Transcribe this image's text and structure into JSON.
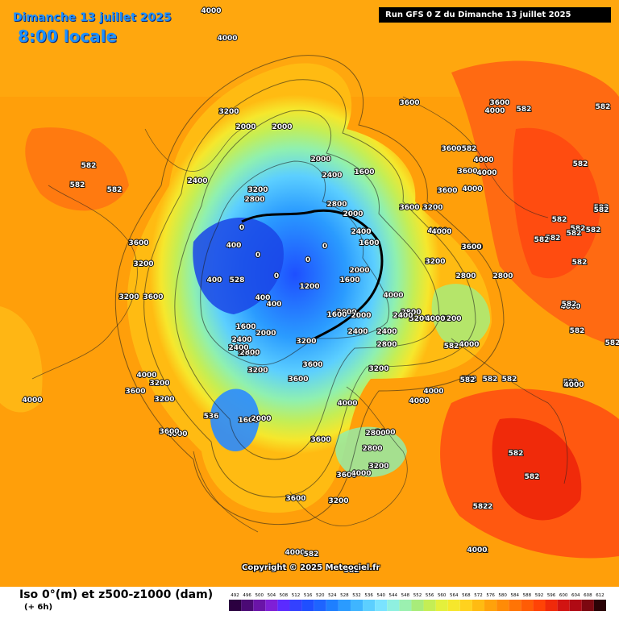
{
  "header": {
    "date": "Dimanche 13 juillet 2025",
    "time": "8:00 locale",
    "run": "Run GFS 0 Z du Dimanche 13 juillet 2025"
  },
  "copyright": "Copyright © 2025 Meteociel.fr",
  "legend": {
    "title": "Iso 0°(m) et z500-z1000 (dam)",
    "subtitle": "(+ 6h)",
    "ticks": [
      "492",
      "496",
      "500",
      "504",
      "508",
      "512",
      "516",
      "520",
      "524",
      "528",
      "532",
      "536",
      "540",
      "544",
      "548",
      "552",
      "556",
      "560",
      "564",
      "568",
      "572",
      "576",
      "580",
      "584",
      "588",
      "592",
      "596",
      "600",
      "604",
      "608",
      "612"
    ],
    "colors": [
      "#2b0040",
      "#4b0a75",
      "#6a14a8",
      "#7f1fd6",
      "#5b2bff",
      "#3341ff",
      "#1f4fff",
      "#1e64ff",
      "#1e7fff",
      "#2a9bff",
      "#3fb5ff",
      "#5ccfff",
      "#7ae3ff",
      "#8ff0e0",
      "#9bf0b0",
      "#a8ec7a",
      "#c4ee55",
      "#e4f03c",
      "#f6e72c",
      "#ffd21e",
      "#ffbb12",
      "#ffa20b",
      "#ff8b07",
      "#ff7405",
      "#ff5c05",
      "#ff4306",
      "#f02a0a",
      "#d21412",
      "#b00a14",
      "#7c0810",
      "#2a0306"
    ]
  },
  "map": {
    "labels": [
      {
        "text": "4000",
        "color": "light"
      },
      {
        "text": "4000",
        "color": "light"
      },
      {
        "text": "582",
        "color": "light"
      },
      {
        "text": "582",
        "color": "light"
      },
      {
        "text": "582",
        "color": "light"
      },
      {
        "text": "3600",
        "color": "light"
      },
      {
        "text": "3200",
        "color": "light"
      },
      {
        "text": "3200",
        "color": "light"
      },
      {
        "text": "3600",
        "color": "light"
      },
      {
        "text": "4000",
        "color": "light"
      },
      {
        "text": "3200",
        "color": "light"
      },
      {
        "text": "3600",
        "color": "light"
      },
      {
        "text": "3200",
        "color": "light"
      },
      {
        "text": "4000",
        "color": "light"
      },
      {
        "text": "3200",
        "color": "light"
      },
      {
        "text": "2400",
        "color": "light"
      },
      {
        "text": "2000",
        "color": "light"
      },
      {
        "text": "1600",
        "color": "light"
      },
      {
        "text": "2000",
        "color": "light"
      },
      {
        "text": "2400",
        "color": "light"
      },
      {
        "text": "2800",
        "color": "light"
      },
      {
        "text": "3200",
        "color": "light"
      },
      {
        "text": "2000",
        "color": "light"
      },
      {
        "text": "2000",
        "color": "light"
      },
      {
        "text": "1600",
        "color": "light"
      },
      {
        "text": "2400",
        "color": "light"
      },
      {
        "text": "2800",
        "color": "light"
      },
      {
        "text": "2000",
        "color": "light"
      },
      {
        "text": "2400",
        "color": "light"
      },
      {
        "text": "1600",
        "color": "light"
      },
      {
        "text": "400",
        "color": "light"
      },
      {
        "text": "528",
        "color": "light"
      },
      {
        "text": "0",
        "color": "light"
      },
      {
        "text": "0",
        "color": "light"
      },
      {
        "text": "0",
        "color": "light"
      },
      {
        "text": "0",
        "color": "light"
      },
      {
        "text": "0",
        "color": "light"
      },
      {
        "text": "400",
        "color": "light"
      },
      {
        "text": "400",
        "color": "light"
      },
      {
        "text": "400",
        "color": "light"
      },
      {
        "text": "1200",
        "color": "light"
      },
      {
        "text": "1600",
        "color": "light"
      },
      {
        "text": "2000",
        "color": "light"
      },
      {
        "text": "2000",
        "color": "light"
      },
      {
        "text": "2400",
        "color": "light"
      },
      {
        "text": "2800",
        "color": "light"
      },
      {
        "text": "3200",
        "color": "light"
      },
      {
        "text": "1600",
        "color": "light"
      },
      {
        "text": "2000",
        "color": "light"
      },
      {
        "text": "2400",
        "color": "light"
      },
      {
        "text": "2800",
        "color": "light"
      },
      {
        "text": "3200",
        "color": "light"
      },
      {
        "text": "3600",
        "color": "light"
      },
      {
        "text": "3200",
        "color": "light"
      },
      {
        "text": "2000",
        "color": "light"
      },
      {
        "text": "2800",
        "color": "light"
      },
      {
        "text": "2400",
        "color": "light"
      },
      {
        "text": "3200",
        "color": "light"
      },
      {
        "text": "3600",
        "color": "light"
      },
      {
        "text": "536",
        "color": "light"
      },
      {
        "text": "1600",
        "color": "light"
      },
      {
        "text": "2000",
        "color": "light"
      },
      {
        "text": "4000",
        "color": "light"
      },
      {
        "text": "3600",
        "color": "light"
      },
      {
        "text": "3600",
        "color": "light"
      },
      {
        "text": "3200",
        "color": "light"
      },
      {
        "text": "4000",
        "color": "light"
      },
      {
        "text": "3600",
        "color": "light"
      },
      {
        "text": "2800",
        "color": "light"
      },
      {
        "text": "2800",
        "color": "light"
      },
      {
        "text": "3600",
        "color": "light"
      },
      {
        "text": "3200",
        "color": "light"
      },
      {
        "text": "3600",
        "color": "light"
      },
      {
        "text": "4000",
        "color": "light"
      },
      {
        "text": "4000",
        "color": "light"
      },
      {
        "text": "582",
        "color": "light"
      },
      {
        "text": "582",
        "color": "light"
      },
      {
        "text": "582",
        "color": "light"
      },
      {
        "text": "582",
        "color": "light"
      },
      {
        "text": "582",
        "color": "light"
      },
      {
        "text": "582",
        "color": "light"
      },
      {
        "text": "4000",
        "color": "light"
      },
      {
        "text": "3600",
        "color": "light"
      },
      {
        "text": "4000",
        "color": "light"
      },
      {
        "text": "3600",
        "color": "light"
      },
      {
        "text": "3200",
        "color": "light"
      },
      {
        "text": "3200",
        "color": "light"
      },
      {
        "text": "3600",
        "color": "light"
      },
      {
        "text": "4000",
        "color": "light"
      },
      {
        "text": "4000",
        "color": "light"
      },
      {
        "text": "3600",
        "color": "light"
      },
      {
        "text": "4000",
        "color": "light"
      },
      {
        "text": "4000",
        "color": "light"
      },
      {
        "text": "3600",
        "color": "light"
      },
      {
        "text": "3200",
        "color": "light"
      },
      {
        "text": "2800",
        "color": "light"
      },
      {
        "text": "2800",
        "color": "light"
      },
      {
        "text": "3200",
        "color": "light"
      },
      {
        "text": "2400",
        "color": "light"
      },
      {
        "text": "4000",
        "color": "light"
      },
      {
        "text": "4000",
        "color": "light"
      },
      {
        "text": "4000",
        "color": "light"
      },
      {
        "text": "4000",
        "color": "light"
      },
      {
        "text": "4000",
        "color": "light"
      },
      {
        "text": "582",
        "color": "light"
      },
      {
        "text": "582",
        "color": "light"
      },
      {
        "text": "582",
        "color": "light"
      },
      {
        "text": "582",
        "color": "light"
      },
      {
        "text": "582",
        "color": "light"
      },
      {
        "text": "582",
        "color": "light"
      },
      {
        "text": "582",
        "color": "light"
      },
      {
        "text": "582",
        "color": "light"
      },
      {
        "text": "582",
        "color": "light"
      },
      {
        "text": "582",
        "color": "light"
      },
      {
        "text": "582",
        "color": "light"
      },
      {
        "text": "582",
        "color": "light"
      },
      {
        "text": "582",
        "color": "light"
      },
      {
        "text": "582",
        "color": "light"
      },
      {
        "text": "582",
        "color": "light"
      },
      {
        "text": "582",
        "color": "light"
      },
      {
        "text": "582",
        "color": "light"
      },
      {
        "text": "582",
        "color": "light"
      },
      {
        "text": "582",
        "color": "light"
      },
      {
        "text": "582",
        "color": "light"
      },
      {
        "text": "582",
        "color": "light"
      },
      {
        "text": "582",
        "color": "light"
      },
      {
        "text": "4000",
        "color": "light"
      },
      {
        "text": "4000",
        "color": "light"
      },
      {
        "text": "4000",
        "color": "light"
      },
      {
        "text": "3600",
        "color": "light"
      },
      {
        "text": "3600",
        "color": "light"
      },
      {
        "text": "582",
        "color": "light"
      },
      {
        "text": "582",
        "color": "light"
      },
      {
        "text": "582",
        "color": "light"
      }
    ]
  }
}
